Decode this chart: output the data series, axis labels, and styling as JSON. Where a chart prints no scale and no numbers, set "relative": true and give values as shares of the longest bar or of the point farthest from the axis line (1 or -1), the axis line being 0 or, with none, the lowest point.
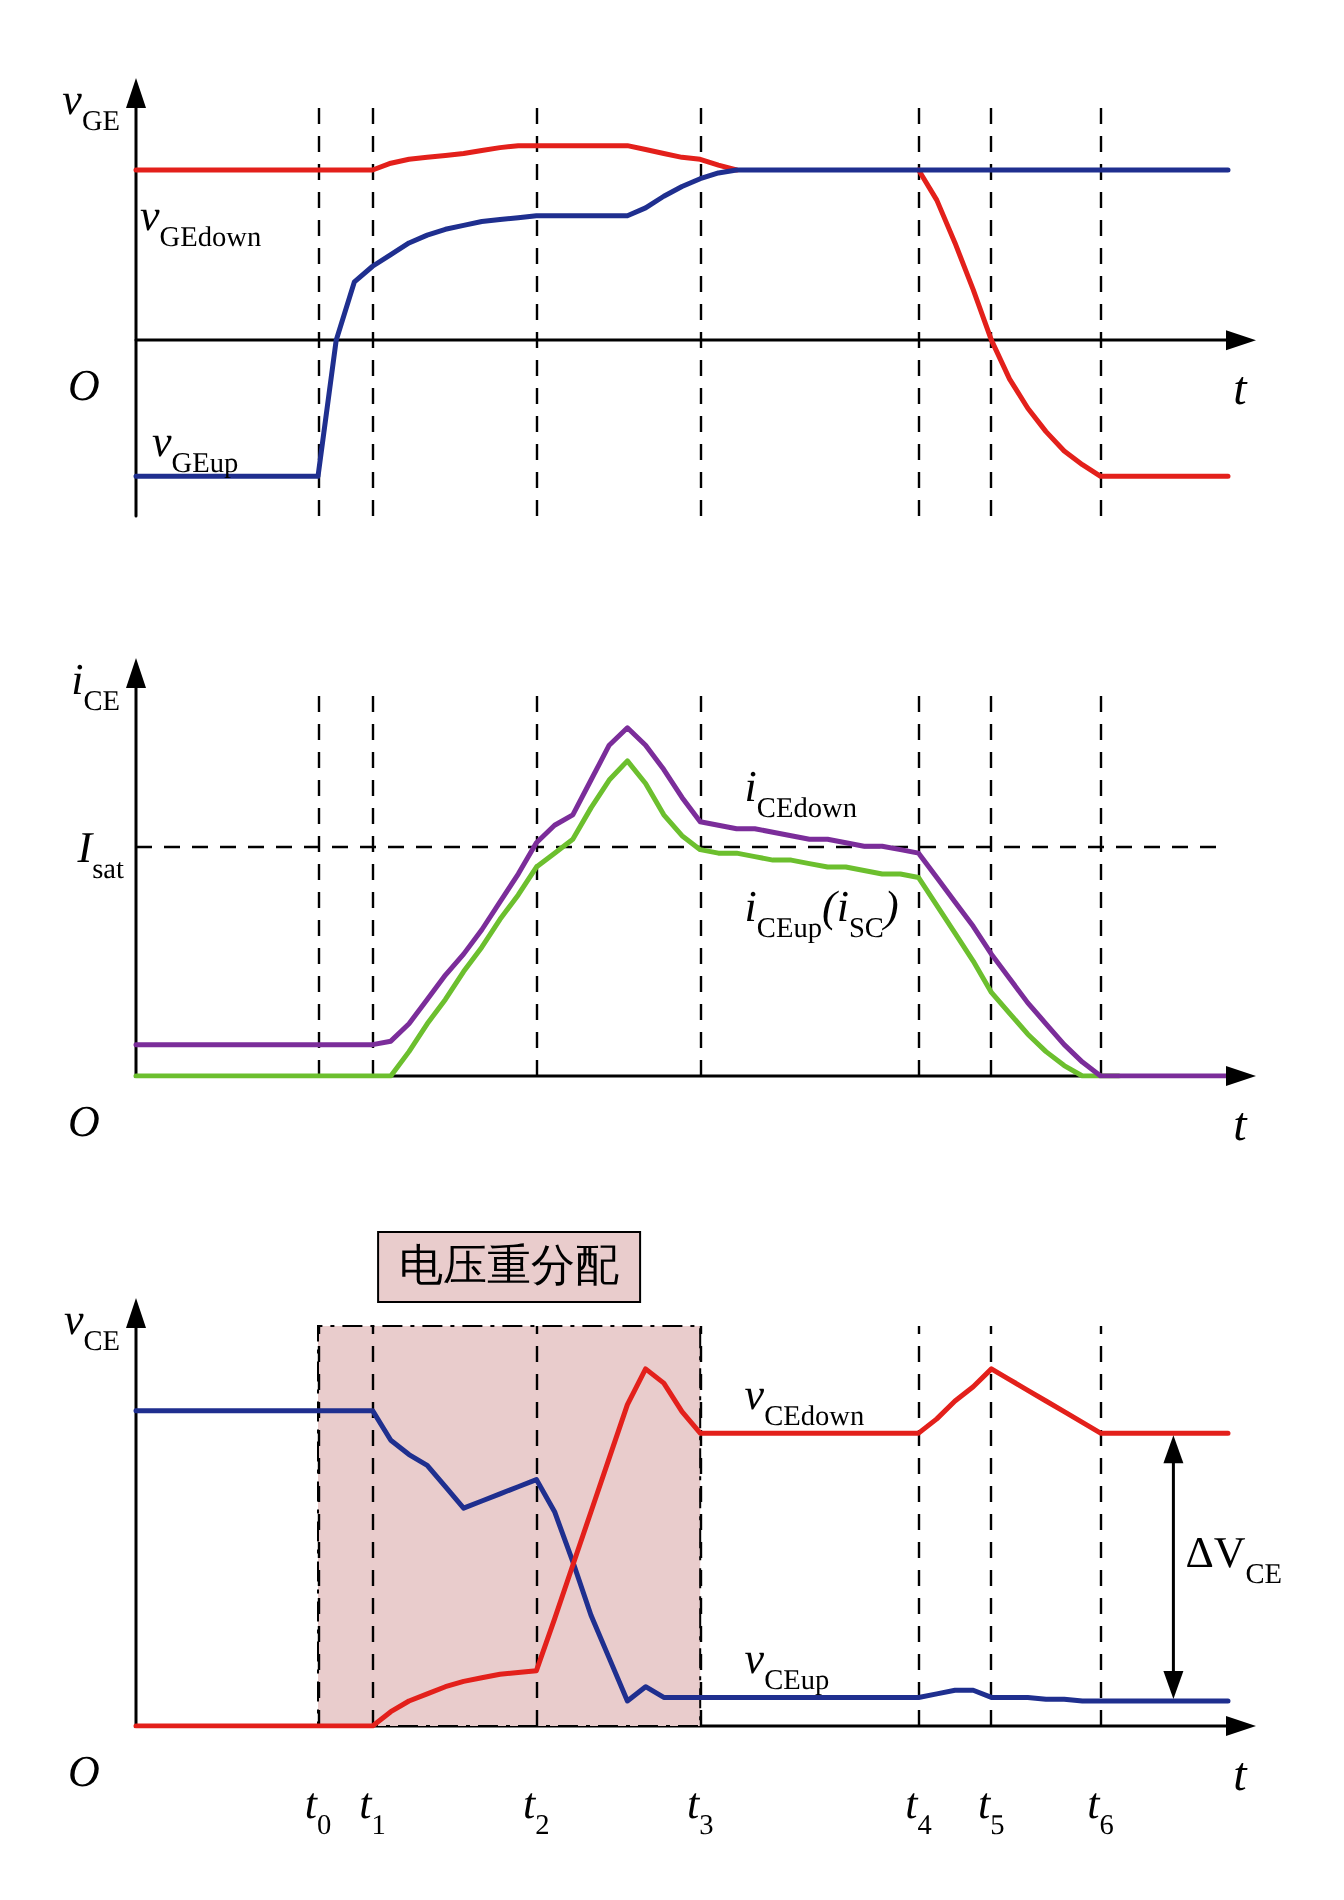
{
  "chart_data": [
    {
      "type": "line",
      "relative": true,
      "ylabel": "v$_{GE}$",
      "xlabel": "t",
      "tick_labels": false,
      "grid": false,
      "line_style": "solid",
      "annotations": [
        "O"
      ],
      "categories": [
        null,
        null,
        null,
        null,
        null,
        null,
        null,
        null,
        null,
        null,
        "t$_{0}$",
        null,
        null,
        "t$_{1}$",
        null,
        null,
        null,
        null,
        null,
        null,
        null,
        null,
        "t$_{2}$",
        null,
        null,
        null,
        null,
        null,
        null,
        null,
        null,
        "t$_{3}$",
        null,
        null,
        null,
        null,
        null,
        null,
        null,
        null,
        null,
        null,
        null,
        "t$_{4}$",
        null,
        null,
        null,
        "t$_{5}$",
        null,
        null,
        null,
        null,
        null,
        "t$_{6}$",
        null,
        null,
        null,
        null,
        null,
        null,
        null
      ],
      "ref_lines": [
        {
          "axis": "x",
          "value": "t$_{0}$",
          "line_style": "dashed"
        },
        {
          "axis": "x",
          "value": "t$_{1}$",
          "line_style": "dashed"
        },
        {
          "axis": "x",
          "value": "t$_{2}$",
          "line_style": "dashed"
        },
        {
          "axis": "x",
          "value": "t$_{3}$",
          "line_style": "dashed"
        },
        {
          "axis": "x",
          "value": "t$_{4}$",
          "line_style": "dashed"
        },
        {
          "axis": "x",
          "value": "t$_{5}$",
          "line_style": "dashed"
        },
        {
          "axis": "x",
          "value": "t$_{6}$",
          "line_style": "dashed"
        }
      ],
      "series": [
        {
          "name": "v$_{GEup}$",
          "color": "#1f2f8f",
          "values": [
            -0.7,
            -0.7,
            -0.7,
            -0.7,
            -0.7,
            -0.7,
            -0.7,
            -0.7,
            -0.7,
            -0.7,
            -0.7,
            0,
            0.3,
            0.38,
            0.44,
            0.5,
            0.54,
            0.57,
            0.59,
            0.61,
            0.62,
            0.63,
            0.64,
            0.64,
            0.64,
            0.64,
            0.64,
            0.64,
            0.68,
            0.74,
            0.79,
            0.83,
            0.86,
            0.875,
            0.875,
            0.875,
            0.875,
            0.875,
            0.875,
            0.875,
            0.875,
            0.875,
            0.875,
            0.875,
            0.875,
            0.875,
            0.875,
            0.875,
            0.875,
            0.875,
            0.875,
            0.875,
            0.875,
            0.875,
            0.875,
            0.875,
            0.875,
            0.875,
            0.875,
            0.875,
            0.875
          ]
        },
        {
          "name": "v$_{GEdown}$",
          "color": "#e3201b",
          "values": [
            0.875,
            0.875,
            0.875,
            0.875,
            0.875,
            0.875,
            0.875,
            0.875,
            0.875,
            0.875,
            0.875,
            0.875,
            0.875,
            0.875,
            0.91,
            0.93,
            0.94,
            0.95,
            0.96,
            0.975,
            0.99,
            1,
            1,
            1,
            1,
            1,
            1,
            1,
            0.98,
            0.96,
            0.94,
            0.93,
            0.9,
            0.875,
            null,
            null,
            null,
            null,
            null,
            null,
            null,
            null,
            null,
            0.875,
            0.72,
            0.5,
            0.26,
            0,
            -0.2,
            -0.35,
            -0.47,
            -0.57,
            -0.64,
            -0.7,
            -0.7,
            -0.7,
            -0.7,
            -0.7,
            -0.7,
            -0.7,
            -0.7
          ]
        }
      ]
    },
    {
      "type": "line",
      "relative": true,
      "ylabel": "i$_{CE}$",
      "xlabel": "t",
      "tick_labels": false,
      "grid": false,
      "line_style": "solid",
      "annotations": [
        "O"
      ],
      "categories": [
        null,
        null,
        null,
        null,
        null,
        null,
        null,
        null,
        null,
        null,
        "t$_{0}$",
        null,
        null,
        "t$_{1}$",
        null,
        null,
        null,
        null,
        null,
        null,
        null,
        null,
        "t$_{2}$",
        null,
        null,
        null,
        null,
        null,
        null,
        null,
        null,
        "t$_{3}$",
        null,
        null,
        null,
        null,
        null,
        null,
        null,
        null,
        null,
        null,
        null,
        "t$_{4}$",
        null,
        null,
        null,
        "t$_{5}$",
        null,
        null,
        null,
        null,
        null,
        "t$_{6}$",
        null,
        null,
        null,
        null,
        null,
        null,
        null
      ],
      "ref_lines": [
        {
          "axis": "y",
          "value": 0.66,
          "label": "I$_{sat}$",
          "line_style": "dashed"
        },
        {
          "axis": "x",
          "value": "t$_{0}$",
          "line_style": "dashed"
        },
        {
          "axis": "x",
          "value": "t$_{1}$",
          "line_style": "dashed"
        },
        {
          "axis": "x",
          "value": "t$_{2}$",
          "line_style": "dashed"
        },
        {
          "axis": "x",
          "value": "t$_{3}$",
          "line_style": "dashed"
        },
        {
          "axis": "x",
          "value": "t$_{4}$",
          "line_style": "dashed"
        },
        {
          "axis": "x",
          "value": "t$_{5}$",
          "line_style": "dashed"
        },
        {
          "axis": "x",
          "value": "t$_{6}$",
          "line_style": "dashed"
        }
      ],
      "series": [
        {
          "name": "i$_{CEdown}$",
          "color": "#7b2d9a",
          "values": [
            0.09,
            0.09,
            0.09,
            0.09,
            0.09,
            0.09,
            0.09,
            0.09,
            0.09,
            0.09,
            0.09,
            0.09,
            0.09,
            0.09,
            0.1,
            0.15,
            0.22,
            0.29,
            0.35,
            0.42,
            0.5,
            0.58,
            0.67,
            0.72,
            0.75,
            0.85,
            0.95,
            1,
            0.95,
            0.88,
            0.8,
            0.73,
            0.72,
            0.71,
            0.71,
            0.7,
            0.69,
            0.68,
            0.68,
            0.67,
            0.66,
            0.66,
            0.65,
            0.64,
            0.57,
            0.5,
            0.43,
            0.35,
            0.28,
            0.21,
            0.15,
            0.09,
            0.04,
            0,
            0,
            0,
            0,
            0,
            0,
            0,
            0
          ]
        },
        {
          "name": "i$_{CEup}$(i$_{SC}$)",
          "color": "#6cbf2e",
          "values": [
            0,
            0,
            0,
            0,
            0,
            0,
            0,
            0,
            0,
            0,
            0,
            0,
            0,
            0,
            0,
            0.07,
            0.15,
            0.22,
            0.3,
            0.37,
            0.45,
            0.52,
            0.6,
            0.64,
            0.68,
            0.77,
            0.85,
            0.905,
            0.84,
            0.75,
            0.69,
            0.65,
            0.64,
            0.64,
            0.63,
            0.62,
            0.62,
            0.61,
            0.6,
            0.6,
            0.59,
            0.58,
            0.58,
            0.57,
            0.49,
            0.41,
            0.33,
            0.24,
            0.18,
            0.12,
            0.07,
            0.03,
            0,
            0,
            0,
            null,
            null,
            null,
            null,
            null,
            null
          ]
        }
      ]
    },
    {
      "type": "line",
      "relative": true,
      "ylabel": "v$_{CE}$",
      "xlabel": "t",
      "tick_labels": "x",
      "grid": false,
      "line_style": "solid",
      "annotations": [
        "O",
        "ΔV$_{CE}$"
      ],
      "categories": [
        null,
        null,
        null,
        null,
        null,
        null,
        null,
        null,
        null,
        null,
        "t$_{0}$",
        null,
        null,
        "t$_{1}$",
        null,
        null,
        null,
        null,
        null,
        null,
        null,
        null,
        "t$_{2}$",
        null,
        null,
        null,
        null,
        null,
        null,
        null,
        null,
        "t$_{3}$",
        null,
        null,
        null,
        null,
        null,
        null,
        null,
        null,
        null,
        null,
        null,
        "t$_{4}$",
        null,
        null,
        null,
        "t$_{5}$",
        null,
        null,
        null,
        null,
        null,
        "t$_{6}$",
        null,
        null,
        null,
        null,
        null,
        null,
        null
      ],
      "bands": [
        {
          "axis": "x",
          "from": "t$_{0}$",
          "to": "t$_{3}$",
          "label": "电压重分配",
          "color": "#e9cccc"
        }
      ],
      "ref_lines": [
        {
          "axis": "x",
          "value": "t$_{0}$",
          "line_style": "dashed"
        },
        {
          "axis": "x",
          "value": "t$_{1}$",
          "line_style": "dashed"
        },
        {
          "axis": "x",
          "value": "t$_{2}$",
          "line_style": "dashed"
        },
        {
          "axis": "x",
          "value": "t$_{3}$",
          "line_style": "dashed"
        },
        {
          "axis": "x",
          "value": "t$_{4}$",
          "line_style": "dashed"
        },
        {
          "axis": "x",
          "value": "t$_{5}$",
          "line_style": "dashed"
        },
        {
          "axis": "x",
          "value": "t$_{6}$",
          "line_style": "dashed"
        }
      ],
      "series": [
        {
          "name": "v$_{CEdown}$",
          "color": "#e3201b",
          "values": [
            0,
            0,
            0,
            0,
            0,
            0,
            0,
            0,
            0,
            0,
            0,
            0,
            0,
            0,
            0.04,
            0.07,
            0.09,
            0.11,
            0.125,
            0.135,
            0.145,
            0.15,
            0.155,
            0.3,
            0.45,
            0.6,
            0.75,
            0.9,
            1,
            0.96,
            0.88,
            0.82,
            0.82,
            0.82,
            0.82,
            0.82,
            0.82,
            0.82,
            0.82,
            0.82,
            0.82,
            0.82,
            0.82,
            0.82,
            0.86,
            0.91,
            0.95,
            1,
            0.97,
            0.94,
            0.91,
            0.88,
            0.85,
            0.82,
            0.82,
            0.82,
            0.82,
            0.82,
            0.82,
            0.82,
            0.82
          ]
        },
        {
          "name": "v$_{CEup}$",
          "color": "#1f2f8f",
          "values": [
            0.883,
            0.883,
            0.883,
            0.883,
            0.883,
            0.883,
            0.883,
            0.883,
            0.883,
            0.883,
            0.883,
            0.883,
            0.883,
            0.883,
            0.8,
            0.76,
            0.73,
            0.67,
            0.61,
            0.63,
            0.65,
            0.67,
            0.69,
            0.6,
            0.46,
            0.31,
            0.19,
            0.07,
            0.11,
            0.08,
            0.08,
            0.08,
            0.08,
            0.08,
            0.08,
            0.08,
            0.08,
            0.08,
            0.08,
            0.08,
            0.08,
            0.08,
            0.08,
            0.08,
            0.09,
            0.1,
            0.1,
            0.08,
            0.08,
            0.08,
            0.075,
            0.075,
            0.07,
            0.07,
            0.07,
            0.07,
            0.07,
            0.07,
            0.07,
            0.07,
            0.07
          ]
        }
      ]
    }
  ]
}
